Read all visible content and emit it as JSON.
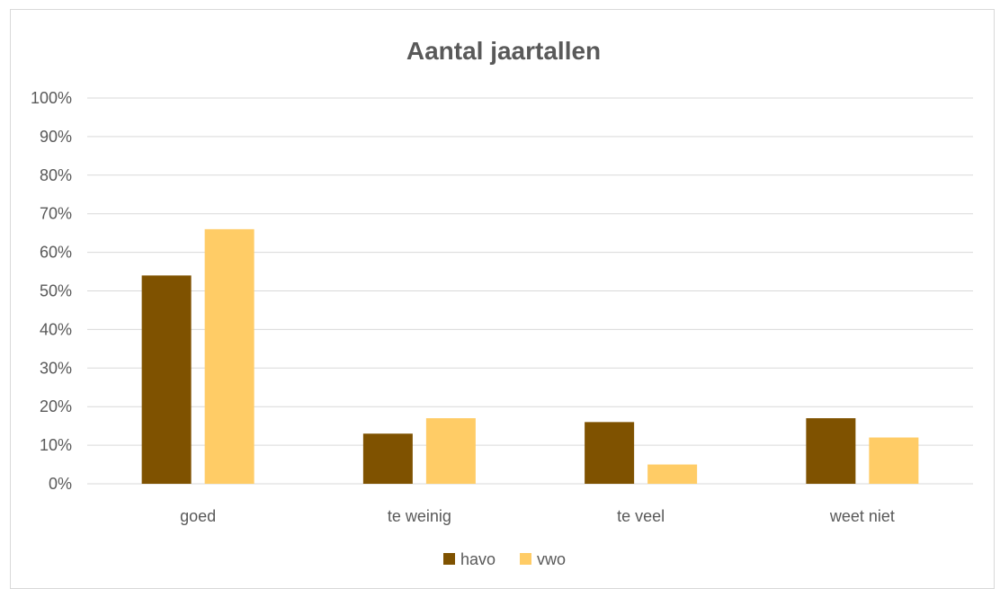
{
  "chart_data": {
    "type": "bar",
    "title": "Aantal jaartallen",
    "xlabel": "",
    "ylabel": "",
    "categories": [
      "goed",
      "te weinig",
      "te veel",
      "weet niet"
    ],
    "series": [
      {
        "name": "havo",
        "color": "#7f5200",
        "values": [
          0.54,
          0.13,
          0.16,
          0.17
        ]
      },
      {
        "name": "vwo",
        "color": "#ffcc66",
        "values": [
          0.66,
          0.17,
          0.05,
          0.12
        ]
      }
    ],
    "ylim": [
      0,
      1
    ],
    "yticks": [
      "0%",
      "10%",
      "20%",
      "30%",
      "40%",
      "50%",
      "60%",
      "70%",
      "80%",
      "90%",
      "100%"
    ],
    "grid": true,
    "gridcolor": "#d9d9d9",
    "legend": "bottom-center"
  }
}
